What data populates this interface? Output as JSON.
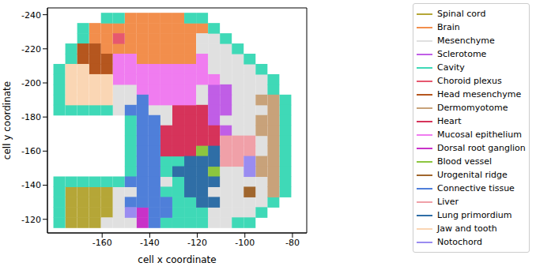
{
  "chart_data": {
    "type": "scatter",
    "xlabel": "cell x coordinate",
    "ylabel": "cell y coordinate",
    "xlim": [
      -183,
      -74
    ],
    "ylim": [
      -244,
      -112
    ],
    "xticks": [
      -160,
      -140,
      -120,
      -100,
      -80
    ],
    "yticks": [
      -240,
      -220,
      -200,
      -180,
      -160,
      -140,
      -120
    ],
    "grid": false,
    "legend": "right",
    "marker": "square",
    "series": [
      {
        "name": "Spinal cord",
        "color": "#b5a637",
        "x": [
          -173,
          -168,
          -163,
          -158,
          -173,
          -168,
          -163,
          -158,
          -173,
          -168,
          -163,
          -158,
          -173,
          -168,
          -163
        ],
        "y": [
          -136,
          -136,
          -136,
          -136,
          -130,
          -130,
          -130,
          -130,
          -124,
          -124,
          -124,
          -124,
          -118,
          -118,
          -118
        ]
      },
      {
        "name": "Brain",
        "color": "#f28e4c",
        "x": [
          -148,
          -143,
          -138,
          -133,
          -128,
          -163,
          -158,
          -153,
          -148,
          -143,
          -138,
          -133,
          -128,
          -123,
          -118,
          -163,
          -158,
          -148,
          -143,
          -138,
          -133,
          -128,
          -123,
          -158,
          -153,
          -148,
          -143,
          -138,
          -133,
          -128,
          -123,
          -143,
          -138,
          -133,
          -128,
          -123
        ],
        "y": [
          -238,
          -238,
          -238,
          -238,
          -238,
          -232,
          -232,
          -232,
          -232,
          -232,
          -232,
          -232,
          -232,
          -232,
          -232,
          -226,
          -226,
          -226,
          -226,
          -226,
          -226,
          -226,
          -226,
          -220,
          -220,
          -220,
          -220,
          -220,
          -220,
          -220,
          -220,
          -214,
          -214,
          -214,
          -214,
          -214
        ]
      },
      {
        "name": "Mesenchyme",
        "color": "#e0e0e0",
        "x": [
          -118,
          -113,
          -118,
          -113,
          -108,
          -113,
          -108,
          -103,
          -113,
          -108,
          -103,
          -98,
          -108,
          -103,
          -98,
          -93,
          -153,
          -148,
          -118,
          -103,
          -98,
          -93,
          -153,
          -148,
          -118,
          -103,
          -98,
          -153,
          -138,
          -133,
          -103,
          -98,
          -93,
          -133,
          -108,
          -103,
          -98,
          -103,
          -98,
          -93,
          -93,
          -108,
          -103,
          -133,
          -108,
          -103,
          -98,
          -93,
          -153,
          -148,
          -113,
          -108,
          -103,
          -93,
          -153,
          -108,
          -103,
          -98,
          -93,
          -153,
          -113,
          -108,
          -103,
          -98,
          -158,
          -153,
          -148,
          -113,
          -108
        ],
        "y": [
          -226,
          -226,
          -220,
          -220,
          -220,
          -214,
          -214,
          -214,
          -208,
          -208,
          -208,
          -208,
          -202,
          -202,
          -202,
          -202,
          -196,
          -196,
          -196,
          -196,
          -196,
          -196,
          -190,
          -190,
          -190,
          -190,
          -190,
          -184,
          -184,
          -184,
          -184,
          -184,
          -184,
          -178,
          -178,
          -178,
          -178,
          -172,
          -172,
          -166,
          -160,
          -148,
          -148,
          -142,
          -142,
          -142,
          -142,
          -142,
          -136,
          -136,
          -136,
          -136,
          -136,
          -136,
          -130,
          -130,
          -130,
          -130,
          -130,
          -124,
          -124,
          -124,
          -124,
          -124,
          -118,
          -118,
          -118,
          -118,
          -118
        ]
      },
      {
        "name": "Sclerotome",
        "color": "#c05ee6",
        "x": [
          -113,
          -108,
          -113,
          -108,
          -113,
          -108,
          -113,
          -108
        ],
        "y": [
          -196,
          -196,
          -190,
          -190,
          -184,
          -184,
          -178,
          -172
        ]
      },
      {
        "name": "Cavity",
        "color": "#3fd9b7",
        "x": [
          -158,
          -153,
          -123,
          -118,
          -168,
          -113,
          -168,
          -108,
          -173,
          -103,
          -173,
          -98,
          -178,
          -93,
          -178,
          -88,
          -178,
          -88,
          -178,
          -83,
          -178,
          -173,
          -168,
          -163,
          -158,
          -83,
          -148,
          -83,
          -148,
          -83,
          -148,
          -83,
          -148,
          -83,
          -148,
          -133,
          -128,
          -83,
          -148,
          -133,
          -83,
          -178,
          -173,
          -168,
          -163,
          -158,
          -153,
          -128,
          -83,
          -178,
          -133,
          -128,
          -83,
          -178,
          -128,
          -123,
          -88,
          -178,
          -128,
          -123,
          -118,
          -93,
          -178,
          -133,
          -128,
          -123,
          -118,
          -103,
          -98
        ],
        "y": [
          -238,
          -238,
          -238,
          -238,
          -232,
          -232,
          -226,
          -226,
          -220,
          -220,
          -214,
          -214,
          -208,
          -208,
          -202,
          -202,
          -196,
          -196,
          -190,
          -190,
          -184,
          -184,
          -184,
          -184,
          -184,
          -184,
          -178,
          -178,
          -172,
          -172,
          -166,
          -166,
          -160,
          -160,
          -154,
          -154,
          -154,
          -154,
          -148,
          -148,
          -148,
          -142,
          -142,
          -142,
          -142,
          -142,
          -142,
          -142,
          -142,
          -136,
          -136,
          -136,
          -136,
          -130,
          -130,
          -130,
          -130,
          -124,
          -124,
          -124,
          -124,
          -124,
          -118,
          -118,
          -118,
          -118,
          -118,
          -118,
          -118
        ]
      },
      {
        "name": "Choroid plexus",
        "color": "#e6586f",
        "x": [
          -153
        ],
        "y": [
          -226
        ]
      },
      {
        "name": "Head mesenchyme",
        "color": "#b5561e",
        "x": [
          -168,
          -163,
          -168,
          -163,
          -158,
          -163,
          -158
        ],
        "y": [
          -220,
          -220,
          -214,
          -214,
          -214,
          -208,
          -208
        ]
      },
      {
        "name": "Dermomyotome",
        "color": "#c8a27a",
        "x": [
          -93,
          -88,
          -88,
          -93,
          -88,
          -93,
          -88,
          -88,
          -88,
          -93,
          -88,
          -93,
          -88,
          -88,
          -88
        ],
        "y": [
          -190,
          -190,
          -184,
          -178,
          -178,
          -172,
          -172,
          -166,
          -160,
          -154,
          -154,
          -148,
          -148,
          -142,
          -136
        ]
      },
      {
        "name": "Heart",
        "color": "#d6335a",
        "x": [
          -128,
          -123,
          -118,
          -128,
          -123,
          -118,
          -133,
          -128,
          -123,
          -118,
          -113,
          -133,
          -128,
          -123,
          -118,
          -113,
          -133,
          -128,
          -123
        ],
        "y": [
          -184,
          -184,
          -184,
          -178,
          -178,
          -178,
          -172,
          -172,
          -172,
          -172,
          -172,
          -166,
          -166,
          -166,
          -166,
          -166,
          -160,
          -160,
          -160
        ]
      },
      {
        "name": "Mucosal epithelium",
        "color": "#f07cf0",
        "x": [
          -153,
          -148,
          -118,
          -153,
          -148,
          -143,
          -138,
          -133,
          -128,
          -123,
          -118,
          -153,
          -148,
          -143,
          -138,
          -133,
          -128,
          -123,
          -118,
          -113,
          -143,
          -138,
          -133,
          -128,
          -123,
          -138,
          -133,
          -128,
          -123
        ],
        "y": [
          -214,
          -214,
          -214,
          -208,
          -208,
          -208,
          -208,
          -208,
          -208,
          -208,
          -208,
          -202,
          -202,
          -202,
          -202,
          -202,
          -202,
          -202,
          -202,
          -202,
          -196,
          -196,
          -196,
          -196,
          -196,
          -190,
          -190,
          -190,
          -190
        ]
      },
      {
        "name": "Dorsal root ganglion",
        "color": "#c832c8",
        "x": [
          -143,
          -143
        ],
        "y": [
          -124,
          -118
        ]
      },
      {
        "name": "Blood vessel",
        "color": "#8cc63f",
        "x": [
          -118,
          -113
        ],
        "y": [
          -160,
          -148
        ]
      },
      {
        "name": "Urogenital ridge",
        "color": "#a0662e",
        "x": [
          -98
        ],
        "y": [
          -136
        ]
      },
      {
        "name": "Connective tissue",
        "color": "#4f7fd9",
        "x": [
          -143,
          -148,
          -143,
          -143,
          -138,
          -143,
          -138,
          -143,
          -138,
          -143,
          -138,
          -143,
          -138,
          -143,
          -138,
          -148,
          -143,
          -138,
          -143,
          -138,
          -148,
          -143,
          -138,
          -133,
          -138,
          -133,
          -138
        ],
        "y": [
          -190,
          -184,
          -184,
          -178,
          -178,
          -172,
          -172,
          -166,
          -166,
          -160,
          -160,
          -154,
          -154,
          -148,
          -148,
          -142,
          -142,
          -142,
          -136,
          -136,
          -130,
          -130,
          -130,
          -130,
          -124,
          -124,
          -118
        ]
      },
      {
        "name": "Liver",
        "color": "#f0a0a8",
        "x": [
          -108,
          -103,
          -98,
          -108,
          -103,
          -98,
          -108,
          -103
        ],
        "y": [
          -166,
          -166,
          -166,
          -160,
          -160,
          -160,
          -154,
          -154
        ]
      },
      {
        "name": "Lung primordium",
        "color": "#2f6ea6",
        "x": [
          -113,
          -123,
          -118,
          -113,
          -128,
          -123,
          -118,
          -123,
          -118,
          -113,
          -123,
          -118,
          -118,
          -113
        ],
        "y": [
          -160,
          -154,
          -154,
          -154,
          -148,
          -148,
          -148,
          -142,
          -142,
          -142,
          -136,
          -136,
          -130,
          -130
        ]
      },
      {
        "name": "Jaw and tooth",
        "color": "#fad6b4",
        "x": [
          -173,
          -168,
          -173,
          -168,
          -163,
          -158,
          -173,
          -168,
          -163,
          -158,
          -173,
          -168,
          -163,
          -158
        ],
        "y": [
          -208,
          -208,
          -202,
          -202,
          -202,
          -202,
          -196,
          -196,
          -196,
          -196,
          -190,
          -190,
          -190,
          -190
        ]
      },
      {
        "name": "Notochord",
        "color": "#9a8cf0",
        "x": [
          -98,
          -98,
          -148
        ],
        "y": [
          -154,
          -148,
          -124
        ]
      }
    ]
  }
}
